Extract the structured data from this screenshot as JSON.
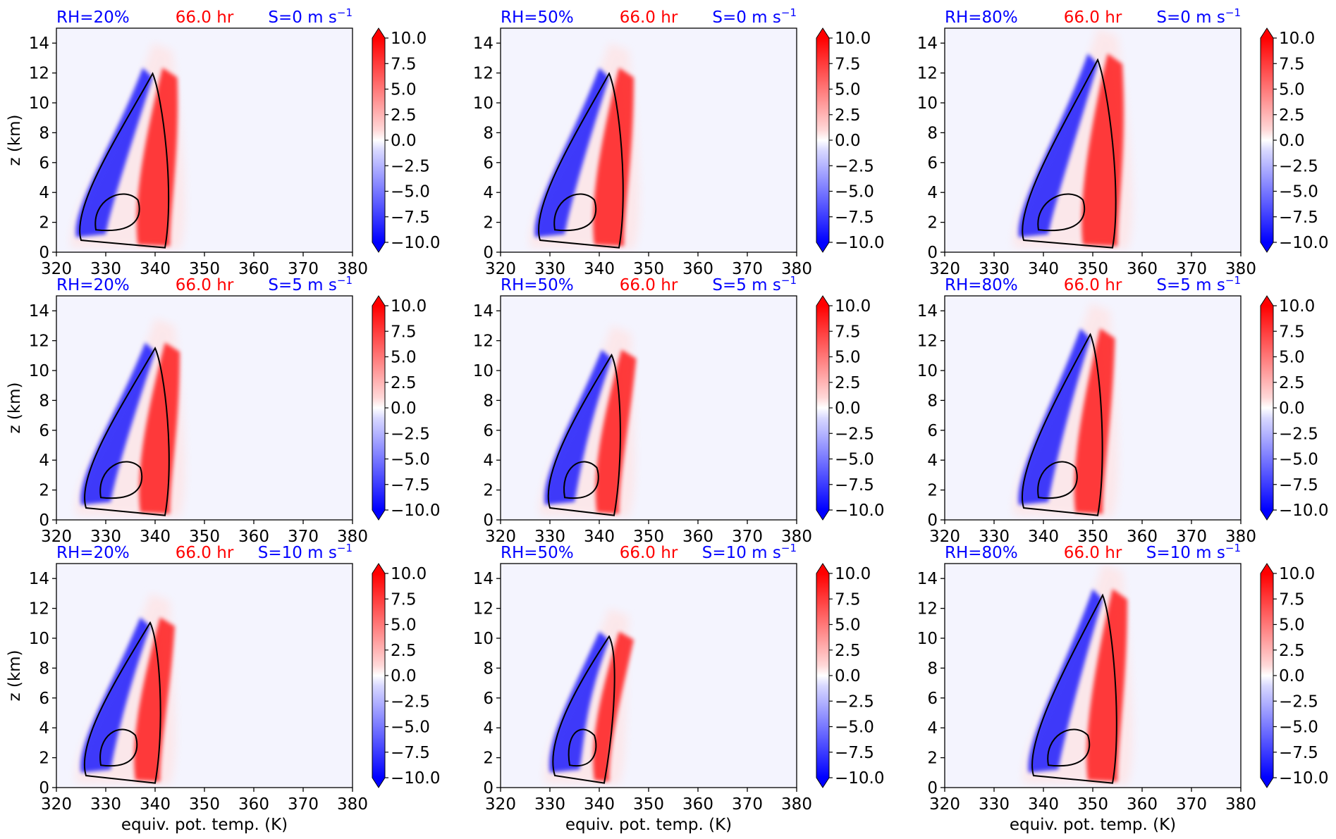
{
  "chart_data": {
    "type": "heatmap",
    "colors": {
      "positive": "#ff0000",
      "negative": "#0000ff",
      "contour": "#000000",
      "title_left": "#0000ff",
      "title_center": "#ff0000",
      "title_right": "#0000ff"
    },
    "xlabel": "equiv. pot. temp. (K)",
    "ylabel": "z (km)",
    "xlim": [
      320,
      380
    ],
    "ylim": [
      0,
      15
    ],
    "x_ticks": [
      "320",
      "330",
      "340",
      "350",
      "360",
      "370",
      "380"
    ],
    "y_ticks": [
      "0",
      "2",
      "4",
      "6",
      "8",
      "10",
      "12",
      "14"
    ],
    "colorbar_ticks": [
      "10.0",
      "7.5",
      "5.0",
      "2.5",
      "0.0",
      "−2.5",
      "−5.0",
      "−7.5",
      "−10.0"
    ],
    "colorbar_range": [
      -10,
      10
    ],
    "colorbar_extend": "both",
    "panels": [
      {
        "rh": "RH=20%",
        "time": "66.0 hr",
        "shear": "S=0 m s",
        "shear_exp": "−1",
        "theta_low": 327,
        "theta_high": 344,
        "top": 13
      },
      {
        "rh": "RH=50%",
        "time": "66.0 hr",
        "shear": "S=0 m s",
        "shear_exp": "−1",
        "theta_low": 330,
        "theta_high": 346,
        "top": 13
      },
      {
        "rh": "RH=80%",
        "time": "66.0 hr",
        "shear": "S=0 m s",
        "shear_exp": "−1",
        "theta_low": 338,
        "theta_high": 356,
        "top": 14
      },
      {
        "rh": "RH=20%",
        "time": "66.0 hr",
        "shear": "S=5 m s",
        "shear_exp": "−1",
        "theta_low": 328,
        "theta_high": 344,
        "top": 12.5
      },
      {
        "rh": "RH=50%",
        "time": "66.0 hr",
        "shear": "S=5 m s",
        "shear_exp": "−1",
        "theta_low": 332,
        "theta_high": 345,
        "top": 12
      },
      {
        "rh": "RH=80%",
        "time": "66.0 hr",
        "shear": "S=5 m s",
        "shear_exp": "−1",
        "theta_low": 338,
        "theta_high": 353,
        "top": 13.5
      },
      {
        "rh": "RH=20%",
        "time": "66.0 hr",
        "shear": "S=10 m s",
        "shear_exp": "−1",
        "theta_low": 328,
        "theta_high": 342,
        "top": 12
      },
      {
        "rh": "RH=50%",
        "time": "66.0 hr",
        "shear": "S=10 m s",
        "shear_exp": "−1",
        "theta_low": 333,
        "theta_high": 343,
        "top": 11
      },
      {
        "rh": "RH=80%",
        "time": "66.0 hr",
        "shear": "S=10 m s",
        "shear_exp": "−1",
        "theta_low": 340,
        "theta_high": 356,
        "top": 14
      }
    ]
  }
}
